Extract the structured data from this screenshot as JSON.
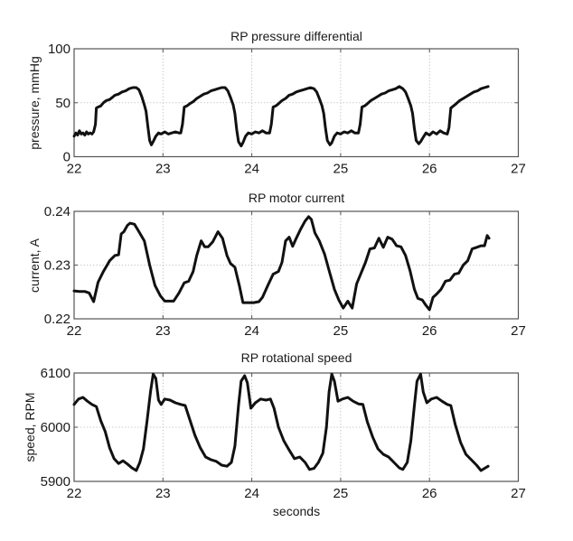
{
  "chart_data": [
    {
      "type": "line",
      "title": "RP pressure differential",
      "xlabel": "",
      "ylabel": "pressure, mmHg",
      "xlim": [
        22,
        27
      ],
      "ylim": [
        0,
        100
      ],
      "xticks": [
        "22",
        "23",
        "24",
        "25",
        "26",
        "27"
      ],
      "yticks": [
        "0",
        "50",
        "100"
      ],
      "grid": true,
      "color": "#111111",
      "series": [
        {
          "name": "pressure",
          "x": [
            22.0,
            22.02,
            22.04,
            22.06,
            22.08,
            22.1,
            22.12,
            22.14,
            22.16,
            22.18,
            22.2,
            22.22,
            22.24,
            22.25,
            22.27,
            22.3,
            22.33,
            22.36,
            22.4,
            22.43,
            22.46,
            22.5,
            22.54,
            22.58,
            22.62,
            22.66,
            22.7,
            22.73,
            22.76,
            22.79,
            22.81,
            22.83,
            22.85,
            22.87,
            22.89,
            22.92,
            22.95,
            22.98,
            23.02,
            23.06,
            23.1,
            23.14,
            23.18,
            23.2,
            23.22,
            23.24,
            23.27,
            23.3,
            23.34,
            23.38,
            23.42,
            23.46,
            23.5,
            23.54,
            23.58,
            23.62,
            23.66,
            23.7,
            23.73,
            23.76,
            23.79,
            23.81,
            23.83,
            23.85,
            23.88,
            23.9,
            23.93,
            23.96,
            24.0,
            24.04,
            24.08,
            24.12,
            24.16,
            24.2,
            24.22,
            24.24,
            24.27,
            24.3,
            24.34,
            24.38,
            24.42,
            24.46,
            24.5,
            24.54,
            24.58,
            24.62,
            24.66,
            24.7,
            24.73,
            24.76,
            24.79,
            24.81,
            24.83,
            24.85,
            24.88,
            24.9,
            24.93,
            24.96,
            25.0,
            25.04,
            25.08,
            25.12,
            25.16,
            25.2,
            25.22,
            25.24,
            25.27,
            25.3,
            25.34,
            25.38,
            25.42,
            25.46,
            25.5,
            25.54,
            25.58,
            25.62,
            25.66,
            25.7,
            25.73,
            25.76,
            25.79,
            25.81,
            25.83,
            25.85,
            25.88,
            25.9,
            25.93,
            25.96,
            26.0,
            26.04,
            26.08,
            26.12,
            26.16,
            26.2,
            26.22,
            26.24,
            26.27,
            26.3,
            26.34,
            26.38,
            26.42,
            26.46,
            26.5,
            26.54,
            26.58,
            26.62,
            26.66
          ],
          "y": [
            19,
            22,
            20,
            24,
            21,
            22,
            20,
            23,
            21,
            22,
            21,
            23,
            30,
            45,
            46,
            47,
            50,
            52,
            53,
            55,
            57,
            58,
            60,
            61,
            63,
            64,
            64,
            62,
            56,
            48,
            42,
            28,
            15,
            11,
            14,
            19,
            22,
            21,
            23,
            21,
            22,
            23,
            22,
            22,
            30,
            46,
            47,
            49,
            51,
            54,
            56,
            58,
            59,
            61,
            62,
            63,
            64,
            64,
            61,
            55,
            48,
            40,
            25,
            14,
            10,
            13,
            19,
            22,
            21,
            23,
            22,
            24,
            22,
            22,
            30,
            46,
            47,
            49,
            52,
            54,
            57,
            58,
            60,
            61,
            62,
            63,
            64,
            63,
            60,
            54,
            47,
            40,
            26,
            15,
            11,
            13,
            19,
            22,
            21,
            23,
            22,
            24,
            22,
            22,
            30,
            46,
            47,
            49,
            52,
            54,
            56,
            58,
            59,
            61,
            62,
            63,
            65,
            63,
            60,
            54,
            47,
            40,
            26,
            15,
            12,
            14,
            18,
            22,
            20,
            23,
            21,
            24,
            22,
            21,
            27,
            45,
            47,
            49,
            52,
            54,
            56,
            58,
            60,
            61,
            63,
            64,
            65
          ]
        }
      ]
    },
    {
      "type": "line",
      "title": "RP motor current",
      "xlabel": "",
      "ylabel": "current, A",
      "xlim": [
        22,
        27
      ],
      "ylim": [
        0.22,
        0.24
      ],
      "xticks": [
        "22",
        "23",
        "24",
        "25",
        "26",
        "27"
      ],
      "yticks": [
        "0.22",
        "0.23",
        "0.24"
      ],
      "grid": true,
      "color": "#111111",
      "series": [
        {
          "name": "current",
          "x": [
            22.0,
            22.06,
            22.12,
            22.17,
            22.22,
            22.27,
            22.33,
            22.4,
            22.46,
            22.5,
            22.53,
            22.56,
            22.6,
            22.63,
            22.68,
            22.73,
            22.79,
            22.85,
            22.91,
            22.97,
            23.02,
            23.08,
            23.12,
            23.18,
            23.24,
            23.29,
            23.34,
            23.38,
            23.43,
            23.47,
            23.51,
            23.56,
            23.62,
            23.67,
            23.72,
            23.76,
            23.81,
            23.86,
            23.9,
            23.96,
            24.02,
            24.08,
            24.12,
            24.18,
            24.24,
            24.3,
            24.34,
            24.38,
            24.42,
            24.46,
            24.5,
            24.55,
            24.6,
            24.64,
            24.67,
            24.71,
            24.76,
            24.82,
            24.87,
            24.93,
            24.98,
            25.03,
            25.08,
            25.13,
            25.18,
            25.23,
            25.28,
            25.33,
            25.38,
            25.43,
            25.48,
            25.53,
            25.58,
            25.63,
            25.68,
            25.73,
            25.78,
            25.83,
            25.87,
            25.92,
            25.96,
            26.0,
            26.04,
            26.08,
            26.13,
            26.18,
            26.23,
            26.28,
            26.33,
            26.38,
            26.43,
            26.48,
            26.53,
            26.58,
            26.62,
            26.65,
            26.67
          ],
          "y": [
            0.2252,
            0.2251,
            0.2251,
            0.2248,
            0.2232,
            0.2268,
            0.2288,
            0.2308,
            0.2318,
            0.2319,
            0.2358,
            0.2362,
            0.2374,
            0.2378,
            0.2376,
            0.2362,
            0.2345,
            0.23,
            0.2262,
            0.2243,
            0.2233,
            0.2233,
            0.2233,
            0.2248,
            0.2267,
            0.227,
            0.2288,
            0.2318,
            0.2345,
            0.2334,
            0.2334,
            0.2343,
            0.2362,
            0.235,
            0.2318,
            0.2303,
            0.2296,
            0.2262,
            0.223,
            0.223,
            0.223,
            0.2232,
            0.224,
            0.2262,
            0.2283,
            0.2288,
            0.2305,
            0.2345,
            0.2352,
            0.2335,
            0.235,
            0.2367,
            0.2382,
            0.239,
            0.2385,
            0.236,
            0.2345,
            0.232,
            0.229,
            0.2255,
            0.2235,
            0.222,
            0.2233,
            0.222,
            0.2265,
            0.2285,
            0.2305,
            0.233,
            0.2332,
            0.235,
            0.2333,
            0.2352,
            0.2348,
            0.2336,
            0.2334,
            0.2318,
            0.229,
            0.2255,
            0.2238,
            0.2235,
            0.2225,
            0.2217,
            0.224,
            0.2246,
            0.2255,
            0.227,
            0.2272,
            0.2283,
            0.2285,
            0.23,
            0.2308,
            0.233,
            0.2333,
            0.2336,
            0.2336,
            0.2355,
            0.235
          ]
        }
      ]
    },
    {
      "type": "line",
      "title": "RP rotational speed",
      "xlabel": "seconds",
      "ylabel": "speed, RPM",
      "xlim": [
        22,
        27
      ],
      "ylim": [
        5900,
        6100
      ],
      "xticks": [
        "22",
        "23",
        "24",
        "25",
        "26",
        "27"
      ],
      "yticks": [
        "5900",
        "6000",
        "6100"
      ],
      "grid": true,
      "color": "#111111",
      "series": [
        {
          "name": "speed",
          "x": [
            22.0,
            22.05,
            22.1,
            22.15,
            22.2,
            22.25,
            22.3,
            22.35,
            22.4,
            22.45,
            22.5,
            22.55,
            22.6,
            22.65,
            22.7,
            22.74,
            22.78,
            22.82,
            22.86,
            22.89,
            22.92,
            22.95,
            22.98,
            23.02,
            23.08,
            23.14,
            23.2,
            23.25,
            23.3,
            23.36,
            23.42,
            23.48,
            23.54,
            23.6,
            23.66,
            23.72,
            23.77,
            23.81,
            23.85,
            23.88,
            23.92,
            23.95,
            23.99,
            24.04,
            24.1,
            24.16,
            24.21,
            24.25,
            24.3,
            24.36,
            24.42,
            24.48,
            24.54,
            24.6,
            24.65,
            24.7,
            24.75,
            24.8,
            24.84,
            24.87,
            24.9,
            24.93,
            24.97,
            25.02,
            25.08,
            25.14,
            25.2,
            25.25,
            25.3,
            25.36,
            25.42,
            25.48,
            25.54,
            25.6,
            25.66,
            25.7,
            25.75,
            25.79,
            25.83,
            25.86,
            25.9,
            25.93,
            25.97,
            26.02,
            26.08,
            26.14,
            26.2,
            26.24,
            26.29,
            26.35,
            26.41,
            26.47,
            26.53,
            26.58,
            26.62,
            26.66
          ],
          "y": [
            6042,
            6052,
            6055,
            6048,
            6042,
            6038,
            6012,
            5992,
            5962,
            5942,
            5933,
            5938,
            5932,
            5925,
            5920,
            5935,
            5960,
            6010,
            6065,
            6098,
            6090,
            6050,
            6042,
            6052,
            6050,
            6045,
            6042,
            6040,
            6015,
            5985,
            5962,
            5945,
            5940,
            5937,
            5930,
            5928,
            5935,
            5965,
            6040,
            6085,
            6095,
            6082,
            6035,
            6045,
            6052,
            6050,
            6052,
            6035,
            6000,
            5975,
            5958,
            5942,
            5945,
            5935,
            5922,
            5924,
            5935,
            5952,
            6000,
            6065,
            6098,
            6085,
            6048,
            6052,
            6055,
            6048,
            6043,
            6042,
            6010,
            5982,
            5960,
            5950,
            5945,
            5935,
            5925,
            5922,
            5935,
            5975,
            6040,
            6085,
            6098,
            6065,
            6045,
            6052,
            6055,
            6048,
            6042,
            6040,
            6005,
            5972,
            5950,
            5940,
            5930,
            5920,
            5924,
            5928
          ]
        }
      ]
    }
  ]
}
